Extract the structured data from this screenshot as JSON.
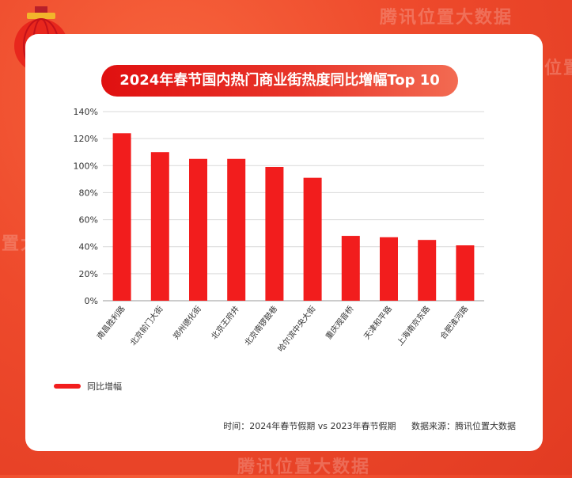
{
  "watermark": "腾讯位置大数据",
  "chart_data": {
    "type": "bar",
    "title": "2024年春节国内热门商业街热度同比增幅Top 10",
    "categories": [
      "南昌胜利路",
      "北京前门大街",
      "郑州德化街",
      "北京王府井",
      "北京南锣鼓巷",
      "哈尔滨中央大街",
      "重庆观音桥",
      "天津和平路",
      "上海南京东路",
      "合肥淮河路"
    ],
    "series": [
      {
        "name": "同比增幅",
        "values": [
          124,
          110,
          105,
          105,
          99,
          91,
          48,
          47,
          45,
          41
        ]
      }
    ],
    "y_ticks": [
      "0%",
      "20%",
      "40%",
      "60%",
      "80%",
      "100%",
      "120%",
      "140%"
    ],
    "ylim": [
      0,
      140
    ],
    "grid": true,
    "legend_position": "bottom-left",
    "bar_color": "#f21d1d"
  },
  "footer": {
    "time": "时间：2024年春节假期 vs 2023年春节假期",
    "source": "数据来源：腾讯位置大数据"
  }
}
